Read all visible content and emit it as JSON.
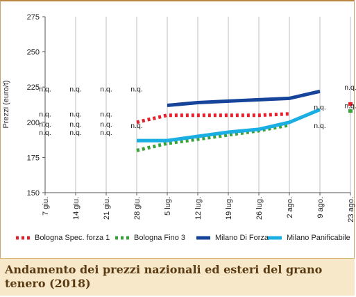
{
  "chart_data": {
    "type": "line",
    "title": "Andamento dei prezzi nazionali ed esteri del grano tenero (2018)",
    "ylabel": "Prezzi (euro/t)",
    "xlabel": "",
    "ylim": [
      150,
      275
    ],
    "yticks": [
      150,
      175,
      200,
      225,
      250,
      275
    ],
    "categories": [
      "7 giu.",
      "14 giu.",
      "21 giu.",
      "28 giu.",
      "5 lug.",
      "12 lug.",
      "19 lug.",
      "26 lug.",
      "2 ago.",
      "9 ago.",
      "23 ago."
    ],
    "grid": "vertical",
    "legend_position": "bottom",
    "series": [
      {
        "name": "Bologna Spec. forza 1",
        "color": "#e3202b",
        "style": "dotted",
        "values": [
          null,
          null,
          null,
          200,
          205,
          205,
          205,
          205,
          206,
          null,
          213
        ]
      },
      {
        "name": "Bologna Fino 3",
        "color": "#3aa23a",
        "style": "dotted",
        "values": [
          null,
          null,
          null,
          180,
          185,
          188,
          191,
          194,
          198,
          null,
          208
        ]
      },
      {
        "name": "Milano Di Forza",
        "color": "#16449a",
        "style": "solid",
        "values": [
          null,
          null,
          null,
          null,
          212,
          214,
          215,
          216,
          217,
          222,
          null
        ]
      },
      {
        "name": "Milano Panificabile",
        "color": "#1aaee3",
        "style": "solid",
        "values": [
          null,
          null,
          null,
          187,
          187,
          190,
          193,
          195,
          200,
          209,
          null
        ]
      }
    ],
    "annotations": {
      "text": "n.q.",
      "markers": [
        {
          "x": "7 giu.",
          "y": 222
        },
        {
          "x": "14 giu.",
          "y": 222
        },
        {
          "x": "21 giu.",
          "y": 222
        },
        {
          "x": "28 giu.",
          "y": 222
        },
        {
          "x": "7 giu.",
          "y": 204
        },
        {
          "x": "7 giu.",
          "y": 197
        },
        {
          "x": "7 giu.",
          "y": 191
        },
        {
          "x": "14 giu.",
          "y": 204
        },
        {
          "x": "14 giu.",
          "y": 197
        },
        {
          "x": "14 giu.",
          "y": 191
        },
        {
          "x": "21 giu.",
          "y": 204
        },
        {
          "x": "21 giu.",
          "y": 197
        },
        {
          "x": "21 giu.",
          "y": 191
        },
        {
          "x": "28 giu.",
          "y": 196
        },
        {
          "x": "9 ago.",
          "y": 209
        },
        {
          "x": "9 ago.",
          "y": 196
        },
        {
          "x": "23 ago.",
          "y": 223
        },
        {
          "x": "23 ago.",
          "y": 210
        }
      ]
    }
  }
}
